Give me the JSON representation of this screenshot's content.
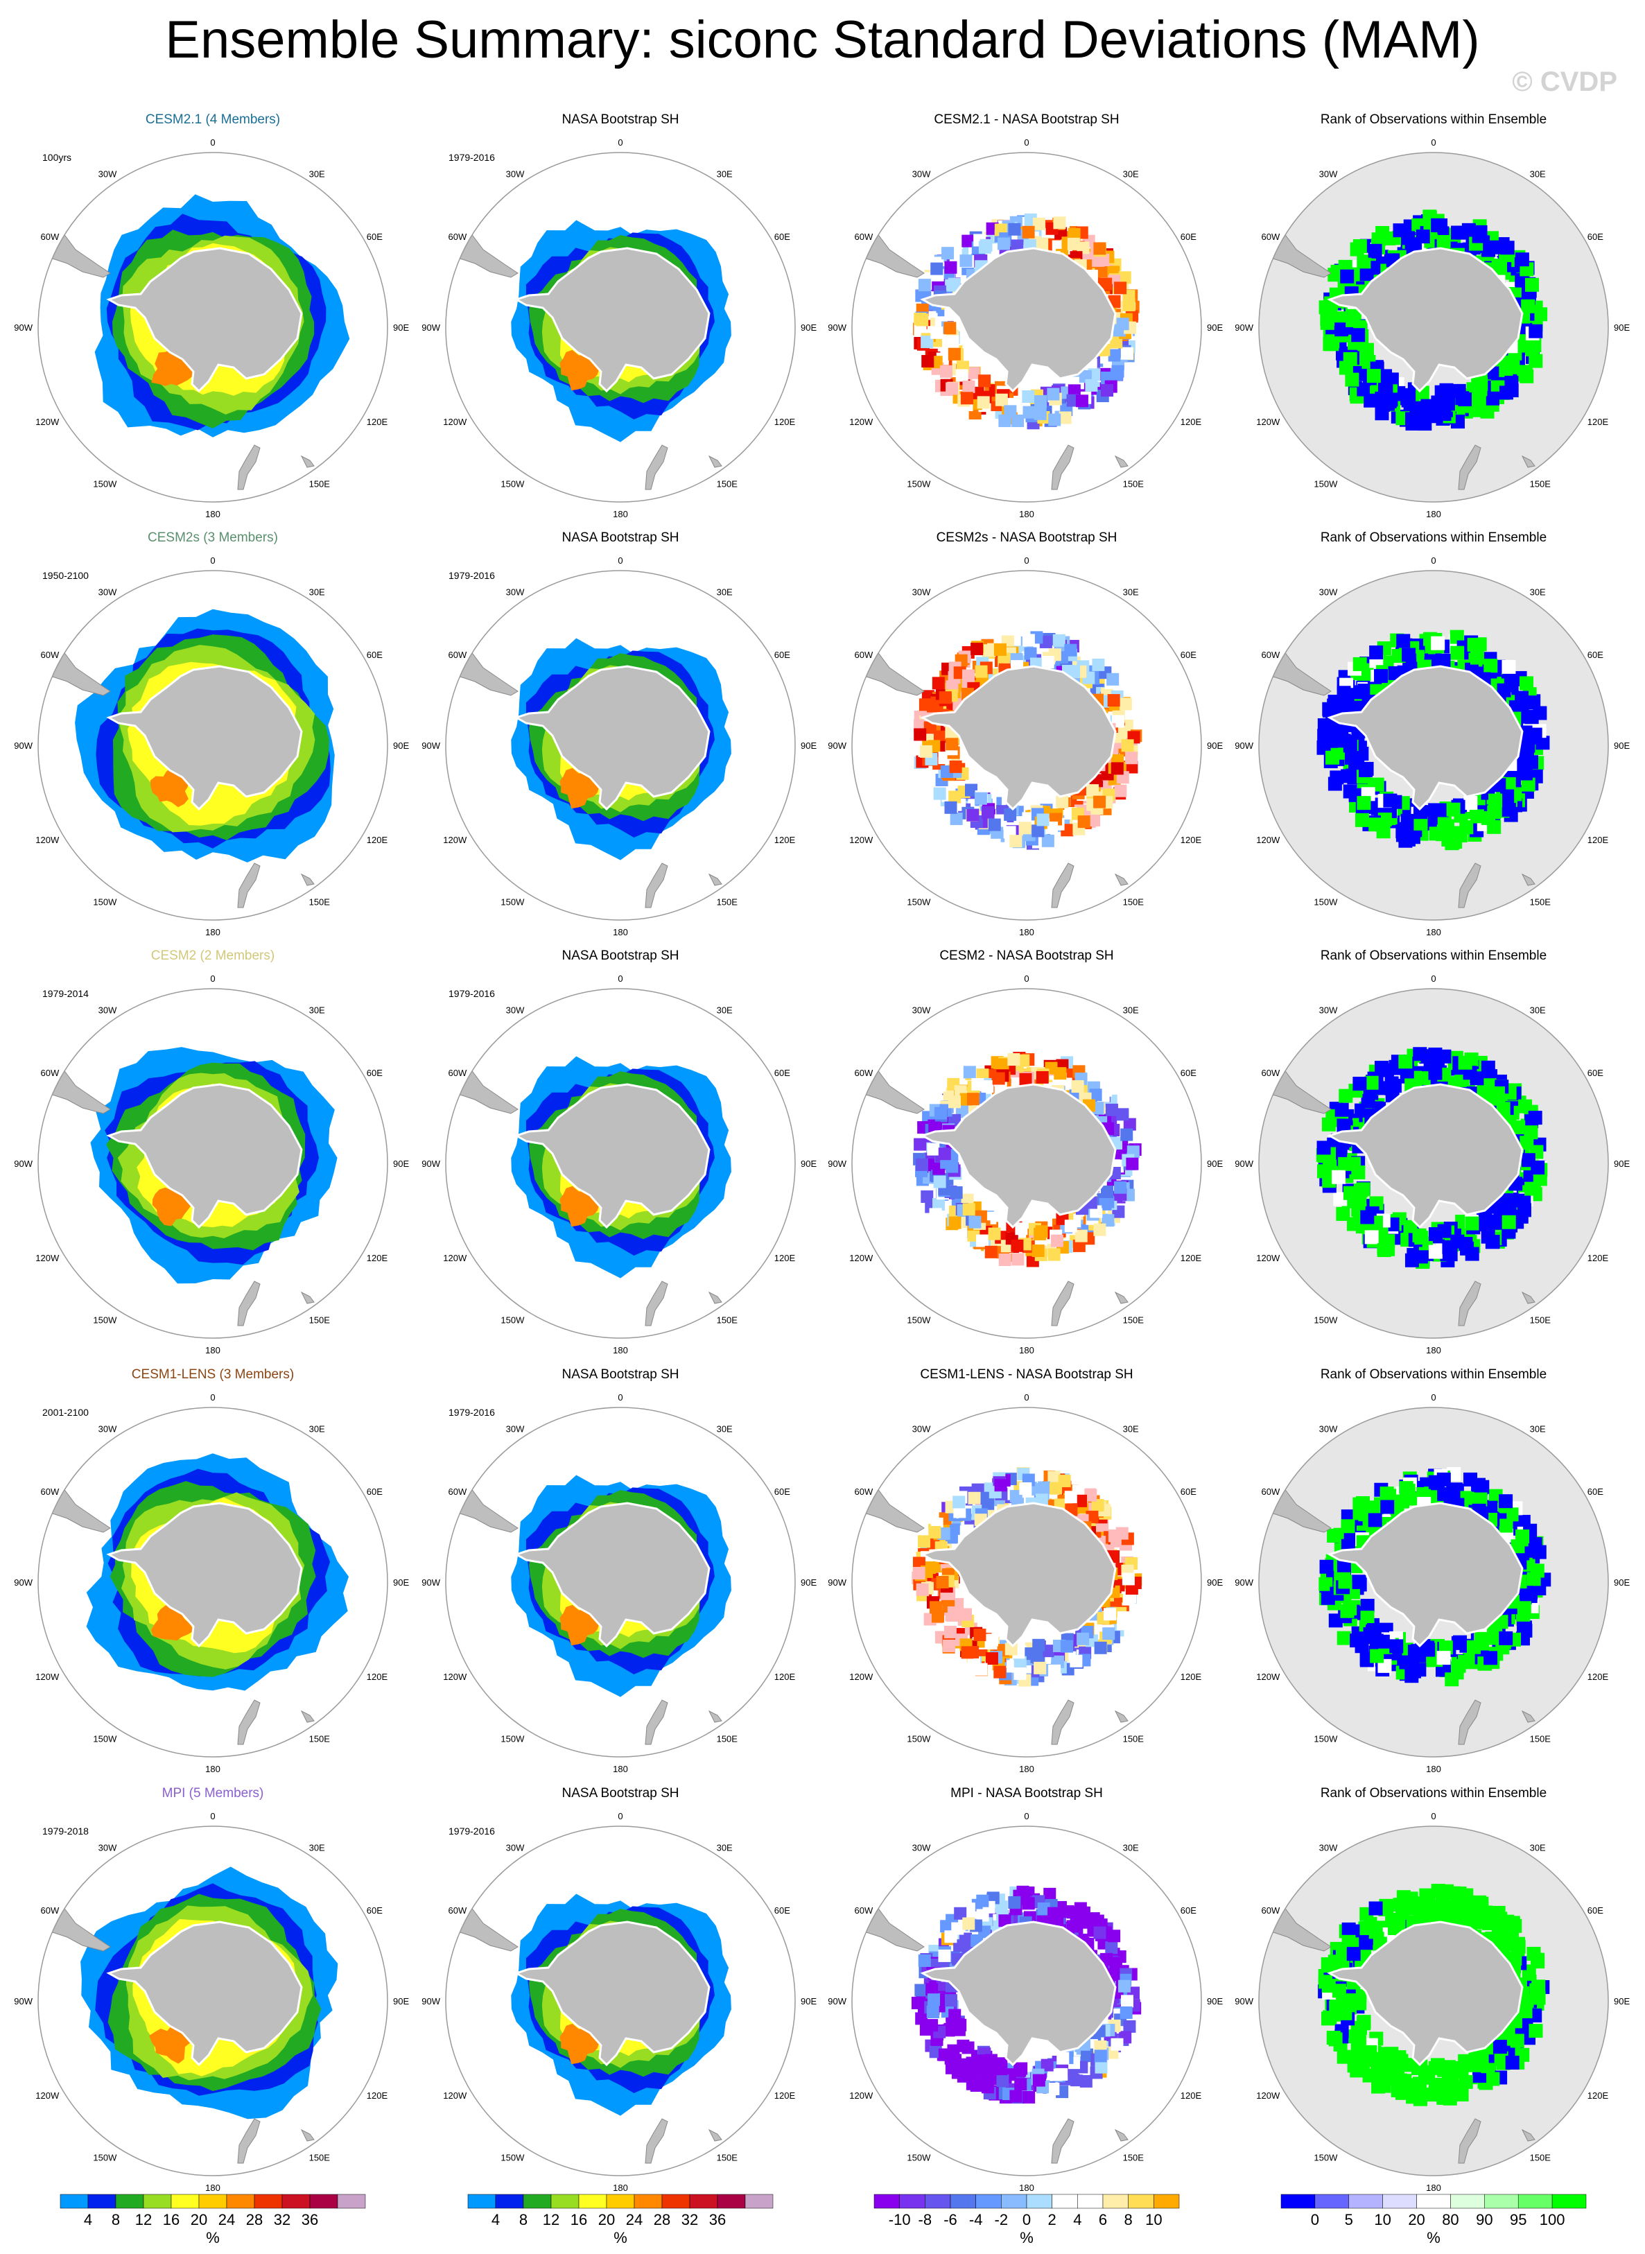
{
  "title": "Ensemble Summary: siconc Standard Deviations (MAM)",
  "watermark": "© CVDP",
  "colors": {
    "land": "#bebebe",
    "ocean_bg_rank": "#e6e6e6",
    "circle_edge": "#9a9a9a",
    "sd_palette": [
      "#0099ff",
      "#0022ee",
      "#22aa22",
      "#99dd22",
      "#ffff22",
      "#ffcc00",
      "#ff8800",
      "#ee3300",
      "#cc1122",
      "#aa0044",
      "#880055",
      "#c8a2c8"
    ],
    "diff_palette": [
      "#8800ee",
      "#7733ee",
      "#6655ee",
      "#5577ee",
      "#6699ff",
      "#88bbff",
      "#aaddff",
      "#ffffff",
      "#ffffff",
      "#ffeeaa",
      "#ffdd55",
      "#ffaa00",
      "#ff7700",
      "#ff4400",
      "#ee1100",
      "#dd0000",
      "#ffbbbb"
    ],
    "rank_palette": [
      "#0000ff",
      "#6666ff",
      "#b3b3ff",
      "#ddddff",
      "#ffffff",
      "#ddffdd",
      "#aaffaa",
      "#66ff66",
      "#00ff00"
    ]
  },
  "lon_labels": {
    "top": "0",
    "tl": "30W",
    "tr": "30E",
    "ul": "60W",
    "ur": "60E",
    "l": "90W",
    "r": "90E",
    "ll": "120W",
    "lr": "120E",
    "bl": "150W",
    "br": "150E",
    "bottom": "180"
  },
  "rows": [
    {
      "model": "CESM2.1 (4 Members)",
      "model_color": "#1a6f96",
      "model_period": "100yrs",
      "obs_title": "NASA Bootstrap SH",
      "obs_period": "1979-2016",
      "diff_title": "CESM2.1 - NASA Bootstrap SH",
      "rank_title": "Rank of Observations within Ensemble"
    },
    {
      "model": "CESM2s (3 Members)",
      "model_color": "#5a8f6e",
      "model_period": "1950-2100",
      "obs_title": "NASA Bootstrap SH",
      "obs_period": "1979-2016",
      "diff_title": "CESM2s - NASA Bootstrap SH",
      "rank_title": "Rank of Observations within Ensemble"
    },
    {
      "model": "CESM2 (2 Members)",
      "model_color": "#d2c87a",
      "model_period": "1979-2014",
      "obs_title": "NASA Bootstrap SH",
      "obs_period": "1979-2016",
      "diff_title": "CESM2 - NASA Bootstrap SH",
      "rank_title": "Rank of Observations within Ensemble"
    },
    {
      "model": "CESM1-LENS (3 Members)",
      "model_color": "#8b4513",
      "model_period": "2001-2100",
      "obs_title": "NASA Bootstrap SH",
      "obs_period": "1979-2016",
      "diff_title": "CESM1-LENS - NASA Bootstrap SH",
      "rank_title": "Rank of Observations within Ensemble"
    },
    {
      "model": "MPI (5 Members)",
      "model_color": "#8a5fd0",
      "model_period": "1979-2018",
      "obs_title": "NASA Bootstrap SH",
      "obs_period": "1979-2016",
      "diff_title": "MPI - NASA Bootstrap SH",
      "rank_title": "Rank of Observations within Ensemble"
    }
  ],
  "colorbars": [
    {
      "labels": [
        "4",
        "8",
        "12",
        "16",
        "20",
        "24",
        "28",
        "32",
        "36"
      ],
      "unit": "%"
    },
    {
      "labels": [
        "4",
        "8",
        "12",
        "16",
        "20",
        "24",
        "28",
        "32",
        "36"
      ],
      "unit": "%"
    },
    {
      "labels": [
        "-10",
        "-8",
        "-6",
        "-4",
        "-2",
        "0",
        "2",
        "4",
        "6",
        "8",
        "10"
      ],
      "unit": "%"
    },
    {
      "labels": [
        "0",
        "5",
        "10",
        "20",
        "80",
        "90",
        "95",
        "100"
      ],
      "unit": "%"
    }
  ]
}
